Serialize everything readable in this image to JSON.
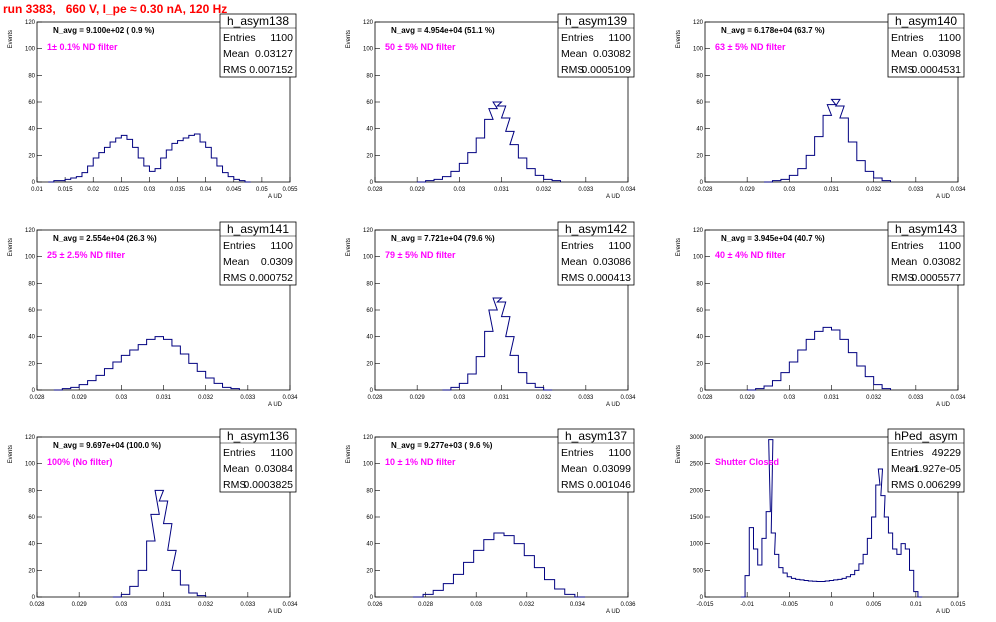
{
  "page": {
    "title": "run 3383,   660 V, I_pe ≈ 0.30 nA, 120 Hz"
  },
  "chart_data": [
    {
      "type": "bar",
      "name": "h_asym138",
      "navg": "N_avg = 9.100e+02 ( 0.9 %)",
      "filter_label": " 1± 0.1% ND filter",
      "stats": {
        "entries": "1100",
        "mean": "0.03127",
        "rms": "0.007152"
      },
      "xlim": [
        0.01,
        0.055
      ],
      "xticks": [
        "0.01",
        "0.015",
        "0.02",
        "0.025",
        "0.03",
        "0.035",
        "0.04",
        "0.045",
        "0.05",
        "0.055"
      ],
      "ylim": [
        0,
        120
      ],
      "yticks": [
        "0",
        "20",
        "40",
        "60",
        "80",
        "100",
        "120"
      ],
      "xlabel": "A_UD",
      "ylabel": "Events",
      "values": [
        [
          0.0125,
          0
        ],
        [
          0.0135,
          1
        ],
        [
          0.0145,
          1
        ],
        [
          0.0155,
          2
        ],
        [
          0.0165,
          3
        ],
        [
          0.0175,
          4
        ],
        [
          0.0185,
          7
        ],
        [
          0.0195,
          12
        ],
        [
          0.0205,
          18
        ],
        [
          0.0215,
          22
        ],
        [
          0.0225,
          26
        ],
        [
          0.0235,
          30
        ],
        [
          0.0245,
          33
        ],
        [
          0.0255,
          35
        ],
        [
          0.0265,
          32
        ],
        [
          0.0275,
          26
        ],
        [
          0.0285,
          18
        ],
        [
          0.0295,
          12
        ],
        [
          0.0305,
          8
        ],
        [
          0.0315,
          10
        ],
        [
          0.0325,
          18
        ],
        [
          0.0335,
          24
        ],
        [
          0.0345,
          29
        ],
        [
          0.0355,
          31
        ],
        [
          0.0365,
          33
        ],
        [
          0.0375,
          35
        ],
        [
          0.0385,
          36
        ],
        [
          0.0395,
          30
        ],
        [
          0.0405,
          26
        ],
        [
          0.0415,
          18
        ],
        [
          0.0425,
          12
        ],
        [
          0.0435,
          7
        ],
        [
          0.0445,
          4
        ],
        [
          0.0455,
          2
        ],
        [
          0.0465,
          1
        ],
        [
          0.0475,
          0
        ]
      ]
    },
    {
      "type": "bar",
      "name": "h_asym139",
      "navg": "N_avg = 4.954e+04 (51.1 %)",
      "filter_label": "50 ± 5% ND filter",
      "stats": {
        "entries": "1100",
        "mean": "0.03082",
        "rms": "0.0005109"
      },
      "xlim": [
        0.028,
        0.034
      ],
      "xticks": [
        "0.028",
        "0.029",
        "0.03",
        "0.031",
        "0.032",
        "0.033",
        "0.034"
      ],
      "ylim": [
        0,
        120
      ],
      "yticks": [
        "0",
        "20",
        "40",
        "60",
        "80",
        "100",
        "120"
      ],
      "xlabel": "A_UD",
      "ylabel": "Events",
      "values": [
        [
          0.0291,
          0
        ],
        [
          0.0293,
          1
        ],
        [
          0.0295,
          2
        ],
        [
          0.0297,
          4
        ],
        [
          0.0299,
          8
        ],
        [
          0.0301,
          14
        ],
        [
          0.0303,
          22
        ],
        [
          0.0305,
          33
        ],
        [
          0.0307,
          47
        ],
        [
          0.0308,
          55
        ],
        [
          0.0309,
          60
        ],
        [
          0.031,
          57
        ],
        [
          0.0311,
          48
        ],
        [
          0.0312,
          38
        ],
        [
          0.0313,
          28
        ],
        [
          0.0315,
          18
        ],
        [
          0.0317,
          10
        ],
        [
          0.0319,
          5
        ],
        [
          0.0321,
          2
        ],
        [
          0.0323,
          1
        ]
      ]
    },
    {
      "type": "bar",
      "name": "h_asym140",
      "navg": "N_avg = 6.178e+04 (63.7 %)",
      "filter_label": "63 ± 5% ND filter",
      "stats": {
        "entries": "1100",
        "mean": "0.03098",
        "rms": "0.0004531"
      },
      "xlim": [
        0.028,
        0.034
      ],
      "xticks": [
        "0.028",
        "0.029",
        "0.03",
        "0.031",
        "0.032",
        "0.033",
        "0.034"
      ],
      "ylim": [
        0,
        120
      ],
      "yticks": [
        "0",
        "20",
        "40",
        "60",
        "80",
        "100",
        "120"
      ],
      "xlabel": "A_UD",
      "ylabel": "Events",
      "values": [
        [
          0.0295,
          0
        ],
        [
          0.0297,
          1
        ],
        [
          0.0299,
          2
        ],
        [
          0.0301,
          5
        ],
        [
          0.0303,
          10
        ],
        [
          0.0305,
          20
        ],
        [
          0.0307,
          34
        ],
        [
          0.0309,
          50
        ],
        [
          0.031,
          58
        ],
        [
          0.0311,
          62
        ],
        [
          0.0312,
          57
        ],
        [
          0.0313,
          48
        ],
        [
          0.0315,
          30
        ],
        [
          0.0317,
          16
        ],
        [
          0.0319,
          8
        ],
        [
          0.0321,
          3
        ],
        [
          0.0323,
          1
        ]
      ]
    },
    {
      "type": "bar",
      "name": "h_asym141",
      "navg": "N_avg = 2.554e+04 (26.3 %)",
      "filter_label": "25 ± 2.5% ND filter",
      "stats": {
        "entries": "1100",
        "mean": "0.0309",
        "rms": "0.000752"
      },
      "xlim": [
        0.028,
        0.034
      ],
      "xticks": [
        "0.028",
        "0.029",
        "0.03",
        "0.031",
        "0.032",
        "0.033",
        "0.034"
      ],
      "ylim": [
        0,
        120
      ],
      "yticks": [
        "0",
        "20",
        "40",
        "60",
        "80",
        "100",
        "120"
      ],
      "xlabel": "A_UD",
      "ylabel": "Events",
      "values": [
        [
          0.0285,
          0
        ],
        [
          0.0287,
          1
        ],
        [
          0.0289,
          2
        ],
        [
          0.0291,
          4
        ],
        [
          0.0293,
          7
        ],
        [
          0.0295,
          11
        ],
        [
          0.0297,
          16
        ],
        [
          0.0299,
          21
        ],
        [
          0.0301,
          26
        ],
        [
          0.0303,
          30
        ],
        [
          0.0305,
          34
        ],
        [
          0.0307,
          38
        ],
        [
          0.0309,
          40
        ],
        [
          0.0311,
          38
        ],
        [
          0.0313,
          33
        ],
        [
          0.0315,
          27
        ],
        [
          0.0317,
          20
        ],
        [
          0.0319,
          14
        ],
        [
          0.0321,
          9
        ],
        [
          0.0323,
          5
        ],
        [
          0.0325,
          2
        ],
        [
          0.0327,
          1
        ]
      ]
    },
    {
      "type": "bar",
      "name": "h_asym142",
      "navg": "N_avg = 7.721e+04 (79.6 %)",
      "filter_label": "79 ± 5% ND filter",
      "stats": {
        "entries": "1100",
        "mean": "0.03086",
        "rms": "0.000413"
      },
      "xlim": [
        0.028,
        0.034
      ],
      "xticks": [
        "0.028",
        "0.029",
        "0.03",
        "0.031",
        "0.032",
        "0.033",
        "0.034"
      ],
      "ylim": [
        0,
        120
      ],
      "yticks": [
        "0",
        "20",
        "40",
        "60",
        "80",
        "100",
        "120"
      ],
      "xlabel": "A_UD",
      "ylabel": "Events",
      "values": [
        [
          0.0297,
          0
        ],
        [
          0.0299,
          2
        ],
        [
          0.0301,
          5
        ],
        [
          0.0303,
          12
        ],
        [
          0.0305,
          25
        ],
        [
          0.0307,
          44
        ],
        [
          0.0308,
          60
        ],
        [
          0.0309,
          69
        ],
        [
          0.031,
          66
        ],
        [
          0.0311,
          55
        ],
        [
          0.0312,
          40
        ],
        [
          0.0313,
          26
        ],
        [
          0.0315,
          13
        ],
        [
          0.0317,
          5
        ],
        [
          0.0319,
          2
        ],
        [
          0.0321,
          0
        ]
      ]
    },
    {
      "type": "bar",
      "name": "h_asym143",
      "navg": "N_avg = 3.945e+04 (40.7 %)",
      "filter_label": "40 ± 4% ND filter",
      "stats": {
        "entries": "1100",
        "mean": "0.03082",
        "rms": "0.0005577"
      },
      "xlim": [
        0.028,
        0.034
      ],
      "xticks": [
        "0.028",
        "0.029",
        "0.03",
        "0.031",
        "0.032",
        "0.033",
        "0.034"
      ],
      "ylim": [
        0,
        120
      ],
      "yticks": [
        "0",
        "20",
        "40",
        "60",
        "80",
        "100",
        "120"
      ],
      "xlabel": "A_UD",
      "ylabel": "Events",
      "values": [
        [
          0.0291,
          0
        ],
        [
          0.0293,
          1
        ],
        [
          0.0295,
          3
        ],
        [
          0.0297,
          7
        ],
        [
          0.0299,
          13
        ],
        [
          0.0301,
          21
        ],
        [
          0.0303,
          30
        ],
        [
          0.0305,
          38
        ],
        [
          0.0307,
          44
        ],
        [
          0.0309,
          47
        ],
        [
          0.0311,
          45
        ],
        [
          0.0313,
          38
        ],
        [
          0.0315,
          28
        ],
        [
          0.0317,
          18
        ],
        [
          0.0319,
          10
        ],
        [
          0.0321,
          4
        ],
        [
          0.0323,
          1
        ]
      ]
    },
    {
      "type": "bar",
      "name": "h_asym136",
      "navg": "N_avg = 9.697e+04 (100.0 %)",
      "filter_label": "100% (No filter)",
      "stats": {
        "entries": "1100",
        "mean": "0.03084",
        "rms": "0.0003825"
      },
      "xlim": [
        0.028,
        0.034
      ],
      "xticks": [
        "0.028",
        "0.029",
        "0.03",
        "0.031",
        "0.032",
        "0.033",
        "0.034"
      ],
      "ylim": [
        0,
        120
      ],
      "yticks": [
        "0",
        "20",
        "40",
        "60",
        "80",
        "100",
        "120"
      ],
      "xlabel": "A_UD",
      "ylabel": "Events",
      "values": [
        [
          0.0299,
          0
        ],
        [
          0.0301,
          2
        ],
        [
          0.0303,
          8
        ],
        [
          0.0305,
          20
        ],
        [
          0.0307,
          42
        ],
        [
          0.0308,
          62
        ],
        [
          0.0309,
          80
        ],
        [
          0.031,
          72
        ],
        [
          0.0311,
          55
        ],
        [
          0.0312,
          35
        ],
        [
          0.0313,
          20
        ],
        [
          0.0315,
          9
        ],
        [
          0.0317,
          3
        ],
        [
          0.0319,
          1
        ]
      ]
    },
    {
      "type": "bar",
      "name": "h_asym137",
      "navg": "N_avg = 9.277e+03 ( 9.6 %)",
      "filter_label": "10 ± 1% ND filter",
      "stats": {
        "entries": "1100",
        "mean": "0.03099",
        "rms": "0.001046"
      },
      "xlim": [
        0.026,
        0.036
      ],
      "xticks": [
        "0.026",
        "0.028",
        "0.03",
        "0.032",
        "0.034",
        "0.036"
      ],
      "ylim": [
        0,
        120
      ],
      "yticks": [
        "0",
        "20",
        "40",
        "60",
        "80",
        "100",
        "120"
      ],
      "xlabel": "A_UD",
      "ylabel": "Events",
      "values": [
        [
          0.0277,
          0
        ],
        [
          0.0281,
          2
        ],
        [
          0.0285,
          5
        ],
        [
          0.0289,
          10
        ],
        [
          0.0293,
          17
        ],
        [
          0.0297,
          26
        ],
        [
          0.0301,
          35
        ],
        [
          0.0305,
          43
        ],
        [
          0.0309,
          48
        ],
        [
          0.0313,
          46
        ],
        [
          0.0317,
          40
        ],
        [
          0.0321,
          31
        ],
        [
          0.0325,
          22
        ],
        [
          0.0329,
          13
        ],
        [
          0.0333,
          6
        ],
        [
          0.0337,
          2
        ],
        [
          0.0341,
          0
        ]
      ]
    },
    {
      "type": "bar",
      "name": "hPed_asym",
      "navg": "",
      "filter_label": "Shutter Closed",
      "stats": {
        "entries": "49229",
        "mean": "-1.927e-05",
        "rms": "0.006299"
      },
      "xlim": [
        -0.015,
        0.015
      ],
      "xticks": [
        "-0.015",
        "-0.01",
        "-0.005",
        "0",
        "0.005",
        "0.01",
        "0.015"
      ],
      "ylim": [
        0,
        3000
      ],
      "yticks": [
        "0",
        "500",
        "1000",
        "1500",
        "2000",
        "2500",
        "3000"
      ],
      "xlabel": "A_UD",
      "ylabel": "Events",
      "values": [
        [
          -0.0105,
          0
        ],
        [
          -0.01,
          400
        ],
        [
          -0.0095,
          1300
        ],
        [
          -0.009,
          900
        ],
        [
          -0.0085,
          600
        ],
        [
          -0.008,
          1100
        ],
        [
          -0.0075,
          1600
        ],
        [
          -0.0072,
          2950
        ],
        [
          -0.0069,
          1200
        ],
        [
          -0.0065,
          800
        ],
        [
          -0.006,
          550
        ],
        [
          -0.0055,
          450
        ],
        [
          -0.005,
          380
        ],
        [
          -0.0045,
          350
        ],
        [
          -0.004,
          330
        ],
        [
          -0.0035,
          320
        ],
        [
          -0.003,
          310
        ],
        [
          -0.0025,
          300
        ],
        [
          -0.002,
          295
        ],
        [
          -0.0015,
          290
        ],
        [
          -0.001,
          290
        ],
        [
          -0.0005,
          300
        ],
        [
          0.0,
          310
        ],
        [
          0.0005,
          320
        ],
        [
          0.001,
          330
        ],
        [
          0.0015,
          350
        ],
        [
          0.002,
          380
        ],
        [
          0.0025,
          420
        ],
        [
          0.003,
          500
        ],
        [
          0.0035,
          620
        ],
        [
          0.004,
          800
        ],
        [
          0.0045,
          1100
        ],
        [
          0.005,
          1500
        ],
        [
          0.0055,
          2100
        ],
        [
          0.0058,
          2400
        ],
        [
          0.0061,
          1900
        ],
        [
          0.0065,
          1500
        ],
        [
          0.007,
          1200
        ],
        [
          0.0075,
          900
        ],
        [
          0.008,
          800
        ],
        [
          0.0085,
          1000
        ],
        [
          0.009,
          900
        ],
        [
          0.0095,
          500
        ],
        [
          0.01,
          100
        ],
        [
          0.0105,
          0
        ]
      ]
    }
  ]
}
